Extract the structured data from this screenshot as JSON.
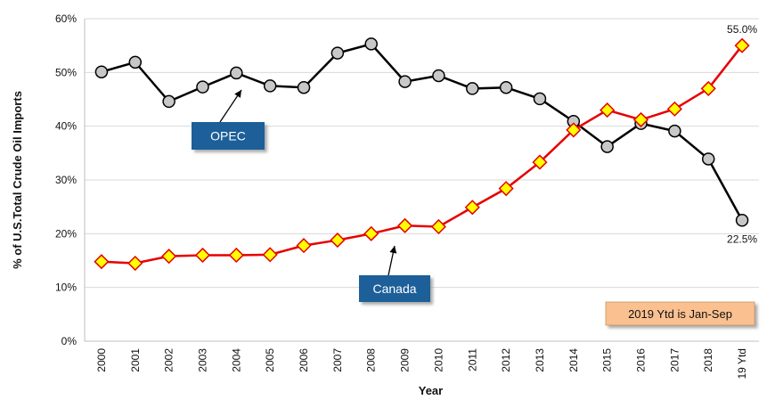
{
  "chart_data": {
    "type": "line",
    "ylabel": "% of U.S.Total Crude Oil Imports",
    "xlabel": "Year",
    "categories": [
      "2000",
      "2001",
      "2002",
      "2003",
      "2004",
      "2005",
      "2006",
      "2007",
      "2008",
      "2009",
      "2010",
      "2011",
      "2012",
      "2013",
      "2014",
      "2015",
      "2016",
      "2017",
      "2018",
      "19 Ytd"
    ],
    "ylim": [
      0,
      60
    ],
    "yticks": [
      "0%",
      "10%",
      "20%",
      "30%",
      "40%",
      "50%",
      "60%"
    ],
    "grid": true,
    "series": [
      {
        "name": "OPEC",
        "color": "#000000",
        "marker": "circle",
        "marker_fill": "#c8c8c8",
        "values": [
          50.1,
          51.9,
          44.6,
          47.3,
          49.9,
          47.5,
          47.2,
          53.6,
          55.3,
          48.3,
          49.4,
          47.0,
          47.2,
          45.1,
          40.9,
          36.2,
          40.5,
          39.1,
          33.9,
          22.5
        ]
      },
      {
        "name": "Canada",
        "color": "#e60000",
        "marker": "diamond",
        "marker_fill": "#ffff00",
        "values": [
          14.8,
          14.5,
          15.8,
          16.0,
          16.0,
          16.1,
          17.8,
          18.8,
          20.0,
          21.5,
          21.3,
          24.9,
          28.4,
          33.3,
          39.3,
          43.0,
          41.2,
          43.2,
          47.0,
          55.0
        ]
      }
    ],
    "annotations": {
      "opec_callout": "OPEC",
      "canada_callout": "Canada",
      "note": "2019 Ytd is Jan-Sep",
      "last_canada_label": "55.0%",
      "last_opec_label": "22.5%"
    },
    "colors": {
      "callout_fill": "#1f5f99",
      "note_fill": "#fac090",
      "grid": "#d9d9d9"
    }
  }
}
